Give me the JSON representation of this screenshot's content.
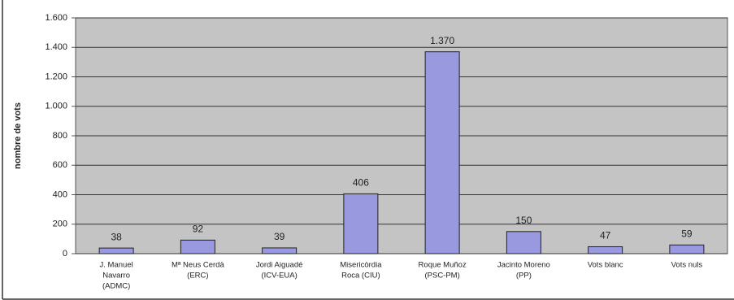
{
  "chart_data": {
    "type": "bar",
    "y_label": "nombre de vots",
    "categories": [
      [
        "J. Manuel",
        "Navarro",
        "(ADMC)"
      ],
      [
        "Mª Neus Cerdà",
        "(ERC)"
      ],
      [
        "Jordi Aiguadé",
        "(ICV-EUA)"
      ],
      [
        "Misericòrdia",
        "Roca (CIU)"
      ],
      [
        "Roque Muñoz",
        "(PSC-PM)"
      ],
      [
        "Jacinto Moreno",
        "(PP)"
      ],
      [
        "Vots blanc"
      ],
      [
        "Vots nuls"
      ]
    ],
    "values": [
      38,
      92,
      39,
      406,
      1370,
      150,
      47,
      59
    ],
    "value_labels": [
      "38",
      "92",
      "39",
      "406",
      "1.370",
      "150",
      "47",
      "59"
    ],
    "color": "#9999e0",
    "ylim": [
      0,
      1600
    ],
    "yticks": [
      0,
      200,
      400,
      600,
      800,
      {
        "value": 1000,
        "label": "1.000"
      },
      {
        "value": 1200,
        "label": "1.200"
      },
      {
        "value": 1400,
        "label": "1.400"
      },
      {
        "value": 1600,
        "label": "1.600"
      }
    ],
    "grid": true
  }
}
